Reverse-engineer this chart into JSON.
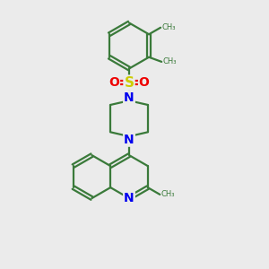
{
  "bg_color": "#ebebeb",
  "bond_color": "#3a7a3a",
  "N_color": "#0000ee",
  "S_color": "#cccc00",
  "O_color": "#ee0000",
  "line_width": 1.6,
  "figsize": [
    3.0,
    3.0
  ],
  "dpi": 100,
  "xlim": [
    0,
    10
  ],
  "ylim": [
    0,
    10
  ]
}
